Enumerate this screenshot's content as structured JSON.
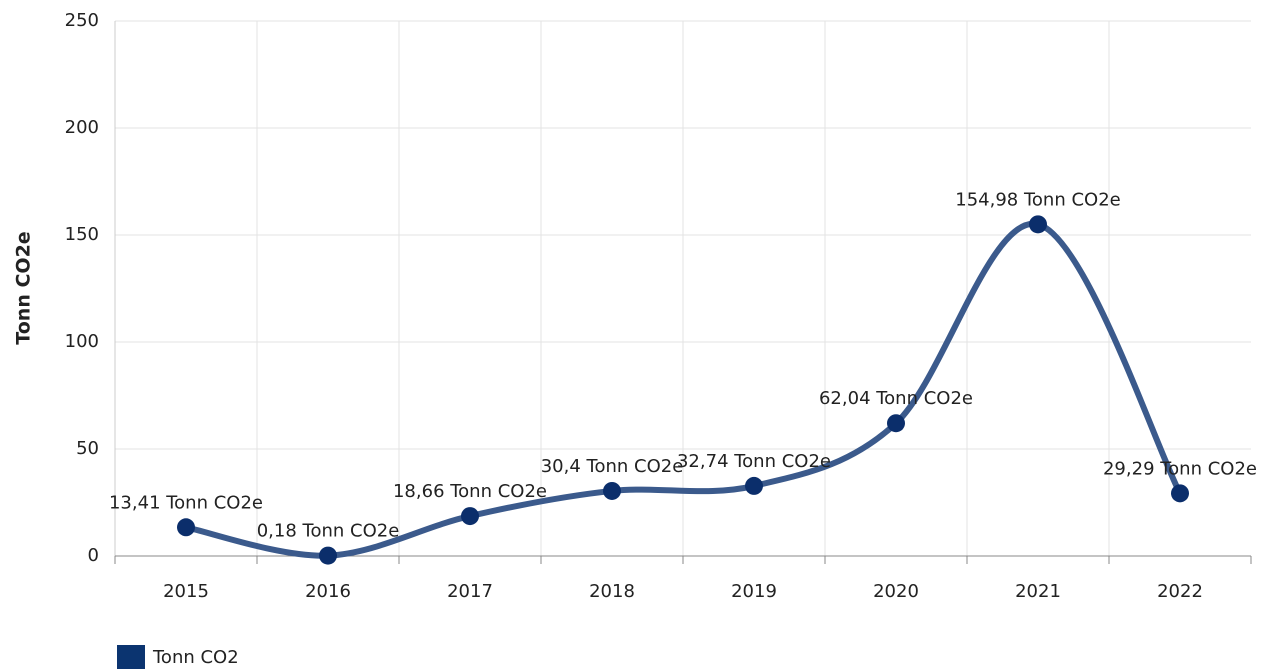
{
  "chart_data": {
    "type": "line",
    "y_label": "Tonn CO2e",
    "categories": [
      "2015",
      "2016",
      "2017",
      "2018",
      "2019",
      "2020",
      "2021",
      "2022"
    ],
    "series": [
      {
        "name": "Tonn CO2",
        "color": "#3b5a8c",
        "marker_color": "#0b2e6b",
        "legend_color": "#0b3470",
        "values": [
          13.41,
          0.18,
          18.66,
          30.4,
          32.74,
          62.04,
          154.98,
          29.29
        ],
        "value_labels": [
          "13,41 Tonn CO2e",
          "0,18 Tonn CO2e",
          "18,66 Tonn CO2e",
          "30,4 Tonn CO2e",
          "32,74 Tonn CO2e",
          "62,04 Tonn CO2e",
          "154,98 Tonn CO2e",
          "29,29 Tonn CO2e"
        ]
      }
    ],
    "ylim": [
      0,
      250
    ],
    "yticks": [
      0,
      50,
      100,
      150,
      200,
      250
    ],
    "grid": true,
    "smooth": true,
    "legend": "bottom-left"
  }
}
